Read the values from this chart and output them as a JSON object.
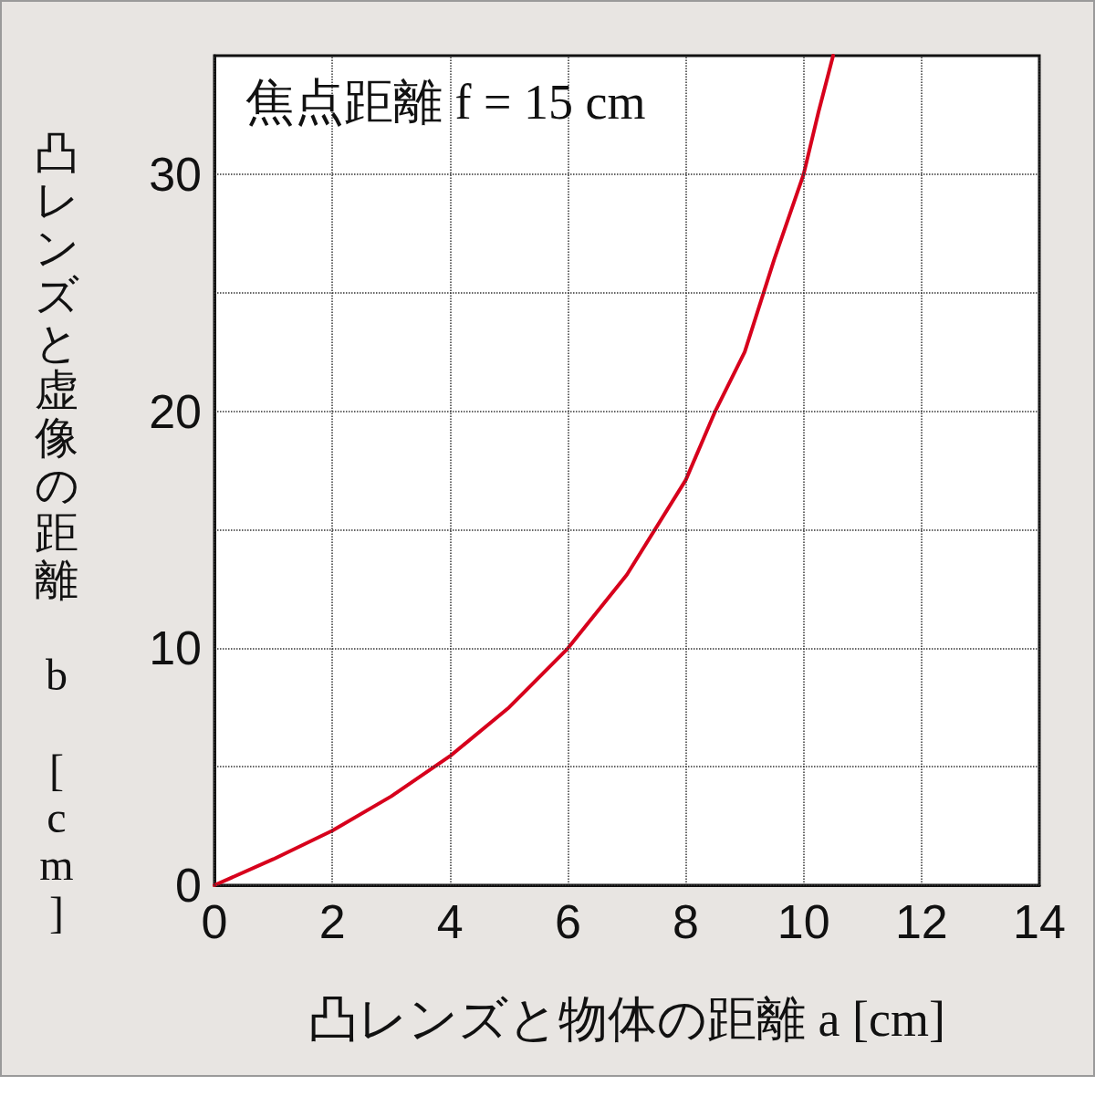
{
  "chart_data": {
    "type": "line",
    "title": "焦点距離 f = 15 cm",
    "xlabel": "凸レンズと物体の距離 a [cm]",
    "ylabel": "凸レンズと虚像の距離 b [cm]",
    "x": [
      0,
      1,
      2,
      3,
      4,
      5,
      6,
      7,
      8,
      8.5,
      9,
      9.5,
      10,
      10.25,
      10.5
    ],
    "series": [
      {
        "color": "#d7001c",
        "values": [
          0,
          1.1,
          2.3,
          3.75,
          5.45,
          7.5,
          10,
          13.1,
          17.1,
          20,
          22.5,
          26.4,
          30,
          32.6,
          35
        ]
      }
    ],
    "xlim": [
      0,
      14
    ],
    "xticks": [
      0,
      2,
      4,
      6,
      8,
      10,
      12,
      14
    ],
    "ylim": [
      0,
      35
    ],
    "yticks": [
      0,
      {
        "value": 5,
        "label": null
      },
      10,
      {
        "value": 15,
        "label": null
      },
      20,
      {
        "value": 25,
        "label": null
      },
      30
    ],
    "grid": true,
    "marker": "none",
    "line_style": "solid"
  }
}
